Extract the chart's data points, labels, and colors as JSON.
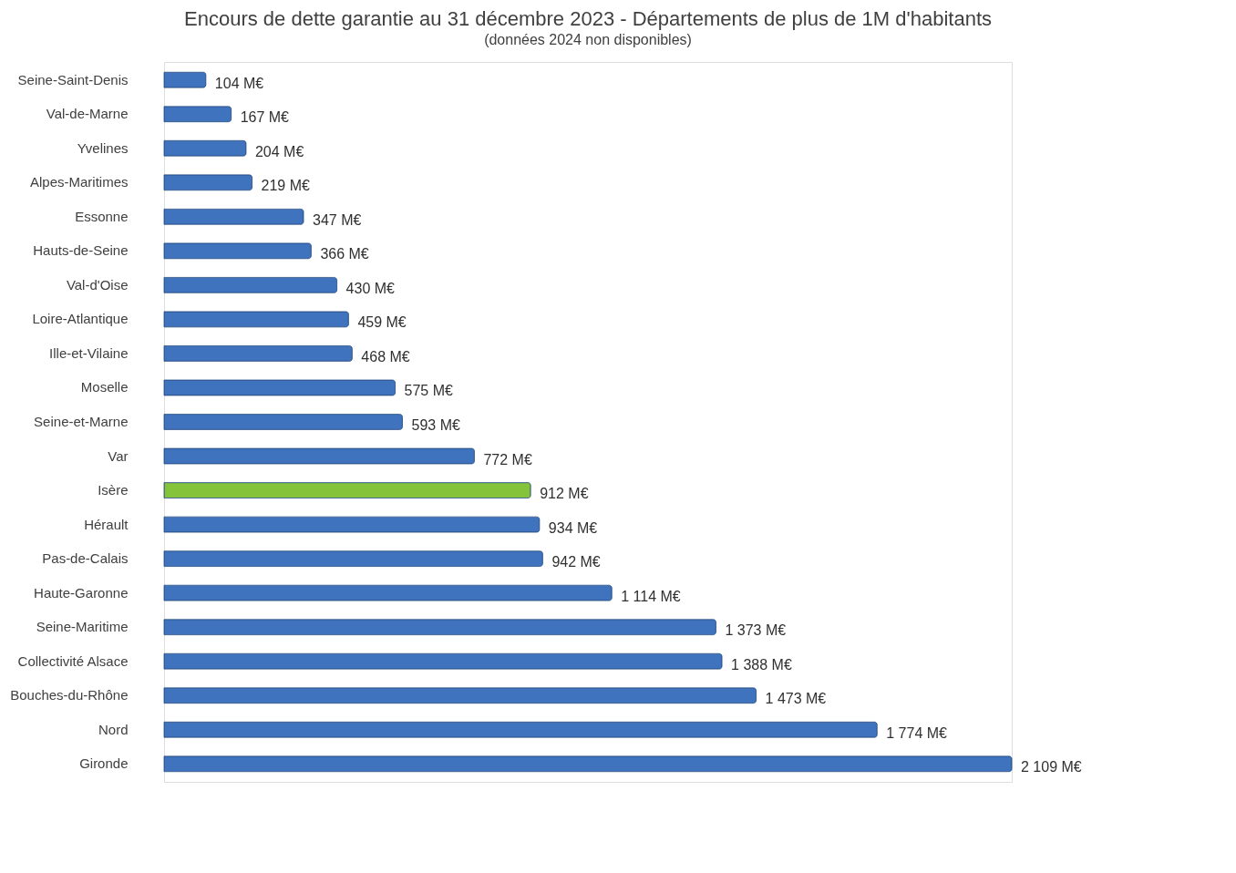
{
  "chart_data": {
    "type": "bar",
    "orientation": "horizontal",
    "title": "Encours de dette garantie au 31 décembre 2023 - Départements de plus de 1M d'habitants",
    "subtitle": "(données 2024 non disponibles)",
    "categories": [
      "Seine-Saint-Denis",
      "Val-de-Marne",
      "Yvelines",
      "Alpes-Maritimes",
      "Essonne",
      "Hauts-de-Seine",
      "Val-d'Oise",
      "Loire-Atlantique",
      "Ille-et-Vilaine",
      "Moselle",
      "Seine-et-Marne",
      "Var",
      "Isère",
      "Hérault",
      "Pas-de-Calais",
      "Haute-Garonne",
      "Seine-Maritime",
      "Collectivité Alsace",
      "Bouches-du-Rhône",
      "Nord",
      "Gironde"
    ],
    "values": [
      104,
      167,
      204,
      219,
      347,
      366,
      430,
      459,
      468,
      575,
      593,
      772,
      912,
      934,
      942,
      1114,
      1373,
      1388,
      1473,
      1774,
      2109
    ],
    "colors": [
      "#3f73bd",
      "#3f73bd",
      "#3f73bd",
      "#3f73bd",
      "#3f73bd",
      "#3f73bd",
      "#3f73bd",
      "#3f73bd",
      "#3f73bd",
      "#3f73bd",
      "#3f73bd",
      "#3f73bd",
      "#84c33a",
      "#3f73bd",
      "#3f73bd",
      "#3f73bd",
      "#3f73bd",
      "#3f73bd",
      "#3f73bd",
      "#3f73bd",
      "#3f73bd"
    ],
    "value_labels": [
      "104 M€",
      "167 M€",
      "204 M€",
      "219 M€",
      "347 M€",
      "366 M€",
      "430 M€",
      "459 M€",
      "468 M€",
      "575 M€",
      "593 M€",
      "772 M€",
      "912 M€",
      "934 M€",
      "942 M€",
      "1 114 M€",
      "1 373 M€",
      "1 388 M€",
      "1 473 M€",
      "1 774 M€",
      "2 109 M€"
    ],
    "tick_labels": "y"
  }
}
